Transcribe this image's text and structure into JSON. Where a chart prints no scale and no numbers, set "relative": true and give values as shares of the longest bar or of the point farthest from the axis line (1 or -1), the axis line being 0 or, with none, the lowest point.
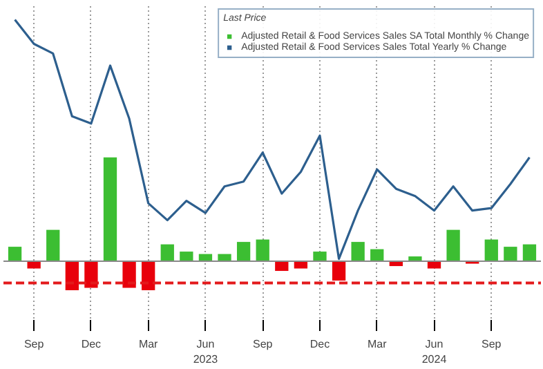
{
  "chart_data": {
    "type": "bar",
    "relative": true,
    "categories": [
      null,
      "Sep",
      null,
      null,
      "Dec",
      null,
      null,
      "Mar",
      null,
      null,
      "Jun\n2023",
      null,
      null,
      "Sep",
      null,
      null,
      "Dec",
      null,
      null,
      "Mar",
      null,
      null,
      "Jun\n2024",
      null,
      null,
      "Sep",
      null,
      null
    ],
    "series": [
      {
        "name": "Adjusted Retail & Food Services Sales SA Total Monthly % Change",
        "color": "#3cbe32",
        "colors": [
          "#3cbe32",
          "#e8000b",
          "#3cbe32",
          "#e8000b",
          "#e8000b",
          "#3cbe32",
          "#e8000b",
          "#e8000b",
          "#3cbe32",
          "#3cbe32",
          "#3cbe32",
          "#3cbe32",
          "#3cbe32",
          "#3cbe32",
          "#e8000b",
          "#e8000b",
          "#3cbe32",
          "#e8000b",
          "#3cbe32",
          "#3cbe32",
          "#e8000b",
          "#3cbe32",
          "#e8000b",
          "#3cbe32",
          "#e8000b",
          "#3cbe32",
          "#3cbe32",
          "#3cbe32"
        ],
        "values": [
          0.06,
          -0.03,
          0.13,
          -0.12,
          -0.11,
          0.43,
          -0.11,
          -0.12,
          0.07,
          0.04,
          0.03,
          0.03,
          0.08,
          0.09,
          -0.04,
          -0.03,
          0.04,
          -0.08,
          0.08,
          0.05,
          -0.02,
          0.02,
          -0.03,
          0.13,
          -0.01,
          0.09,
          0.06,
          0.07
        ]
      },
      {
        "name": "Adjusted Retail & Food Services Sales Total Yearly % Change",
        "type": "line",
        "color": "#2d5f8e",
        "values": [
          1.0,
          0.9,
          0.86,
          0.6,
          0.57,
          0.81,
          0.59,
          0.24,
          0.17,
          0.25,
          0.2,
          0.31,
          0.33,
          0.45,
          0.28,
          0.37,
          0.52,
          0.01,
          0.21,
          0.38,
          0.3,
          0.27,
          0.21,
          0.31,
          0.21,
          0.22,
          0.32,
          0.43
        ]
      }
    ],
    "legend_title": "Last Price",
    "legend": "top right",
    "grid": "x",
    "ref_lines": [
      {
        "axis": "y",
        "value": -0.09,
        "color": "#e31a1c",
        "line_style": "dashed"
      }
    ]
  }
}
